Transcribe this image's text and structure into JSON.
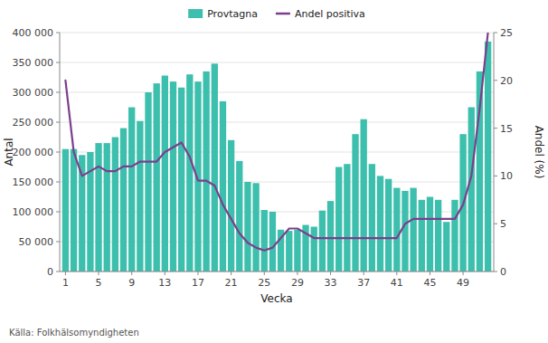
{
  "chart_data": {
    "type": "bar",
    "x": [
      1,
      2,
      3,
      4,
      5,
      6,
      7,
      8,
      9,
      10,
      11,
      12,
      13,
      14,
      15,
      16,
      17,
      18,
      19,
      20,
      21,
      22,
      23,
      24,
      25,
      26,
      27,
      28,
      29,
      30,
      31,
      32,
      33,
      34,
      35,
      36,
      37,
      38,
      39,
      40,
      41,
      42,
      43,
      44,
      45,
      46,
      47,
      48,
      49,
      50,
      51,
      52
    ],
    "series": [
      {
        "name": "Provtagna",
        "type": "bar",
        "color": "#3dbfad",
        "values": [
          205000,
          205000,
          195000,
          200000,
          215000,
          215000,
          225000,
          240000,
          275000,
          252000,
          300000,
          315000,
          328000,
          318000,
          308000,
          330000,
          318000,
          335000,
          348000,
          285000,
          220000,
          185000,
          150000,
          148000,
          103000,
          100000,
          70000,
          68000,
          70000,
          78000,
          75000,
          102000,
          118000,
          175000,
          180000,
          230000,
          255000,
          180000,
          160000,
          155000,
          140000,
          135000,
          140000,
          120000,
          125000,
          120000,
          83000,
          120000,
          230000,
          275000,
          335000,
          385000
        ]
      },
      {
        "name": "Andel positiva",
        "type": "line",
        "color": "#7b3f8c",
        "axis": "y2",
        "values": [
          20.0,
          12.5,
          10.0,
          10.5,
          11.0,
          10.5,
          10.5,
          11.0,
          11.0,
          11.5,
          11.5,
          11.5,
          12.5,
          13.0,
          13.5,
          12.0,
          9.5,
          9.5,
          9.0,
          7.0,
          5.5,
          4.0,
          3.0,
          2.5,
          2.2,
          2.5,
          3.5,
          4.5,
          4.5,
          4.0,
          3.5,
          3.5,
          3.5,
          3.5,
          3.5,
          3.5,
          3.5,
          3.5,
          3.5,
          3.5,
          3.5,
          5.0,
          5.5,
          5.5,
          5.5,
          5.5,
          5.5,
          5.5,
          7.0,
          10.0,
          17.0,
          25.0
        ]
      }
    ],
    "xlabel": "Vecka",
    "ylabel": "Antal",
    "y2label": "Andel (%)",
    "xlim": [
      0.3,
      52.7
    ],
    "xticks": [
      1,
      5,
      9,
      13,
      17,
      21,
      25,
      29,
      33,
      37,
      41,
      45,
      49
    ],
    "ylim": [
      0,
      400000
    ],
    "yticks": [
      0,
      {
        "value": 50000,
        "label": "50 000"
      },
      {
        "value": 100000,
        "label": "100 000"
      },
      {
        "value": 150000,
        "label": "150 000"
      },
      {
        "value": 200000,
        "label": "200 000"
      },
      {
        "value": 250000,
        "label": "250 000"
      },
      {
        "value": 300000,
        "label": "300 000"
      },
      {
        "value": 350000,
        "label": "350 000"
      },
      {
        "value": 400000,
        "label": "400 000"
      }
    ],
    "y2lim": [
      0,
      25
    ],
    "y2ticks": [
      0,
      5,
      10,
      15,
      20,
      25
    ],
    "grid": true,
    "legend": "top",
    "annotations": [
      "Källa: Folkhälsomyndigheten"
    ]
  }
}
